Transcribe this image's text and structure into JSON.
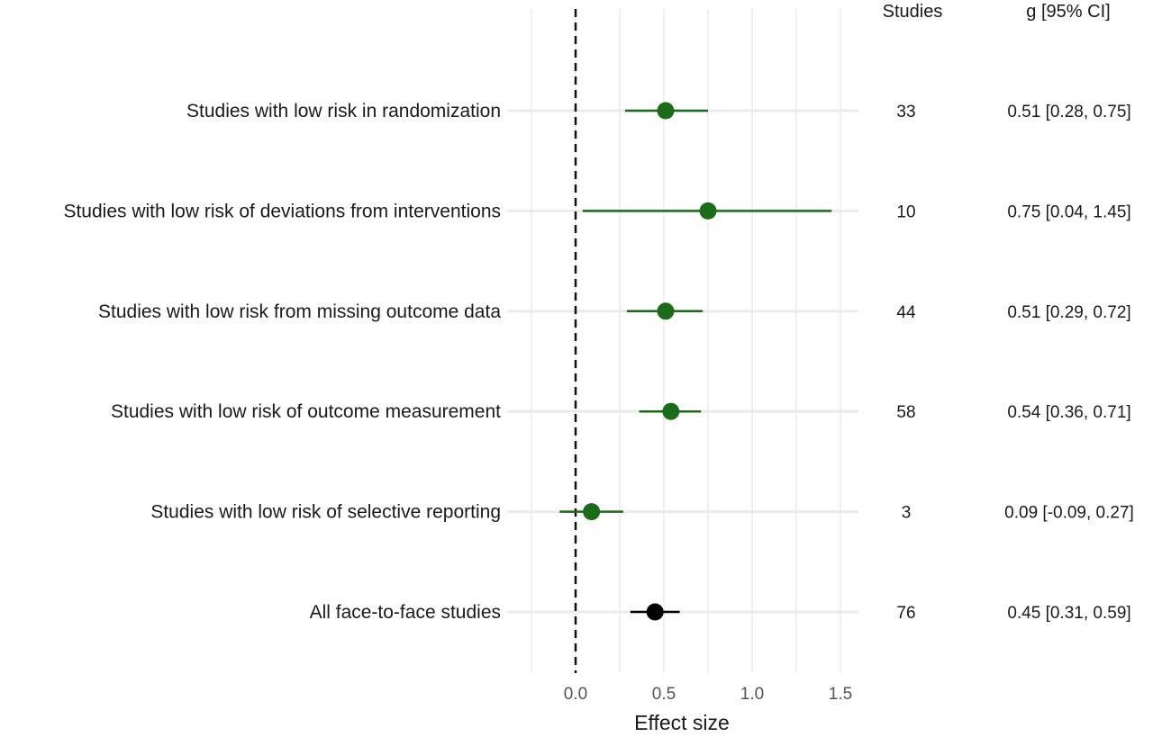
{
  "chart_data": {
    "type": "forest",
    "xlabel": "Effect size",
    "xlim": [
      -0.25,
      1.62
    ],
    "xticks": [
      0.0,
      0.5,
      1.0,
      1.5
    ],
    "xtick_labels": [
      "0.0",
      "0.5",
      "1.0",
      "1.5"
    ],
    "reference_line": 0,
    "grid": true,
    "columns": {
      "studies_header": "Studies",
      "ci_header": "g [95% CI]"
    },
    "rows": [
      {
        "label": "Studies with low risk in randomization",
        "g": 0.51,
        "lower": 0.28,
        "upper": 0.75,
        "studies": "33",
        "ci_text": "0.51 [0.28, 0.75]",
        "color": "#1a6b1a"
      },
      {
        "label": "Studies with low risk of deviations from interventions",
        "g": 0.75,
        "lower": 0.04,
        "upper": 1.45,
        "studies": "10",
        "ci_text": "0.75 [0.04, 1.45]",
        "color": "#1a6b1a"
      },
      {
        "label": "Studies with low risk from missing outcome data",
        "g": 0.51,
        "lower": 0.29,
        "upper": 0.72,
        "studies": "44",
        "ci_text": "0.51 [0.29, 0.72]",
        "color": "#1a6b1a"
      },
      {
        "label": "Studies with low risk of outcome measurement",
        "g": 0.54,
        "lower": 0.36,
        "upper": 0.71,
        "studies": "58",
        "ci_text": "0.54 [0.36, 0.71]",
        "color": "#1a6b1a"
      },
      {
        "label": "Studies with low risk of selective reporting",
        "g": 0.09,
        "lower": -0.09,
        "upper": 0.27,
        "studies": "3",
        "ci_text": "0.09 [-0.09, 0.27]",
        "color": "#1a6b1a"
      },
      {
        "label": "All face-to-face studies",
        "g": 0.45,
        "lower": 0.31,
        "upper": 0.59,
        "studies": "76",
        "ci_text": "0.45 [0.31, 0.59]",
        "color": "#000000"
      }
    ]
  }
}
